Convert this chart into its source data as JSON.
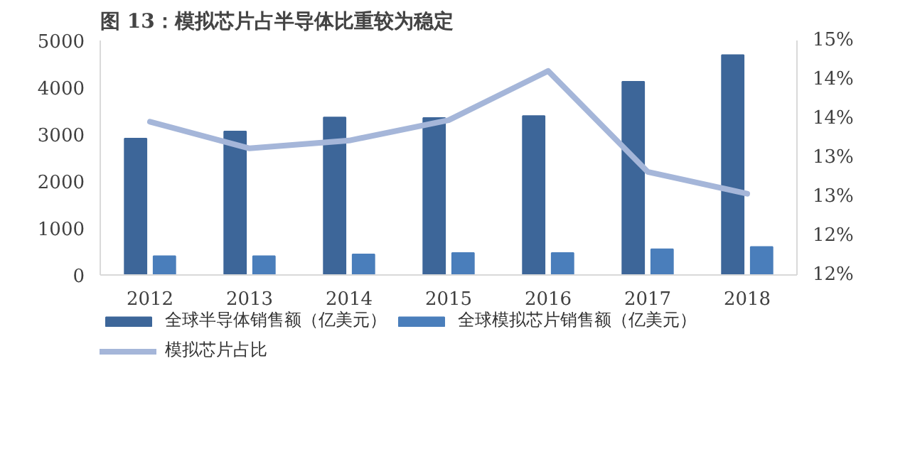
{
  "chart_data": {
    "type": "bar",
    "title": "图 13：模拟芯片占半导体比重较为稳定",
    "categories": [
      "2012",
      "2013",
      "2014",
      "2015",
      "2016",
      "2017",
      "2018"
    ],
    "series": [
      {
        "name": "全球半导体销售额（亿美元）",
        "color": "#3d6699",
        "values": [
          2910,
          3060,
          3360,
          3350,
          3390,
          4120,
          4690
        ]
      },
      {
        "name": "全球模拟芯片销售额（亿美元）",
        "color": "#4a7ebb",
        "values": [
          400,
          400,
          440,
          470,
          470,
          550,
          600
        ]
      },
      {
        "name": "模拟芯片占比",
        "type": "line",
        "axis": "y2",
        "color": "#a5b6d9",
        "values": [
          13.96,
          13.62,
          13.72,
          13.98,
          14.61,
          13.32,
          13.04
        ]
      }
    ],
    "ylim": [
      0,
      5000
    ],
    "yticks": [
      0,
      1000,
      2000,
      3000,
      4000,
      5000
    ],
    "y2lim": [
      12,
      15
    ],
    "y2ticks": [
      {
        "value": 12,
        "label": "12%"
      },
      {
        "value": 12.5,
        "label": "12%"
      },
      {
        "value": 13,
        "label": "13%"
      },
      {
        "value": 13.5,
        "label": "13%"
      },
      {
        "value": 14,
        "label": "14%"
      },
      {
        "value": 14.5,
        "label": "14%"
      },
      {
        "value": 15,
        "label": "15%"
      }
    ],
    "legend": "bottom",
    "grid": false
  }
}
